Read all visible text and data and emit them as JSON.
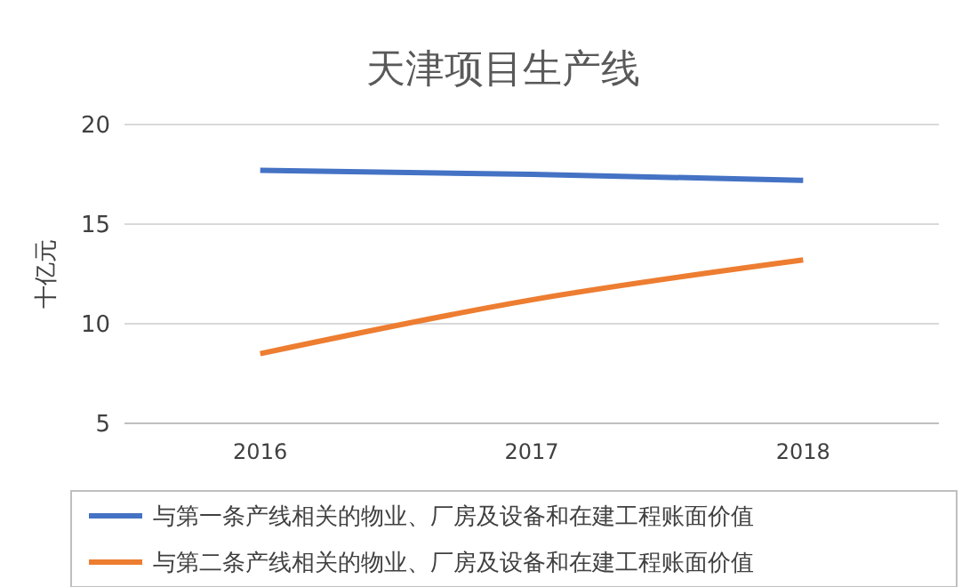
{
  "chart_data": {
    "type": "line",
    "title": "天津项目生产线",
    "ylabel": "十亿元",
    "categories": [
      "2016",
      "2017",
      "2018"
    ],
    "series": [
      {
        "name": "与第一条产线相关的物业、厂房及设备和在建工程账面价值",
        "color": "#4472c4",
        "values": [
          17.7,
          17.5,
          17.2
        ]
      },
      {
        "name": "与第二条产线相关的物业、厂房及设备和在建工程账面价值",
        "color": "#ed7d31",
        "values": [
          8.5,
          11.2,
          13.2
        ]
      }
    ],
    "ylim": [
      5,
      20
    ],
    "yticks": [
      5,
      10,
      15,
      20
    ],
    "grid": "y",
    "legend": "bottom",
    "marker": "none",
    "line_style": "solid"
  }
}
